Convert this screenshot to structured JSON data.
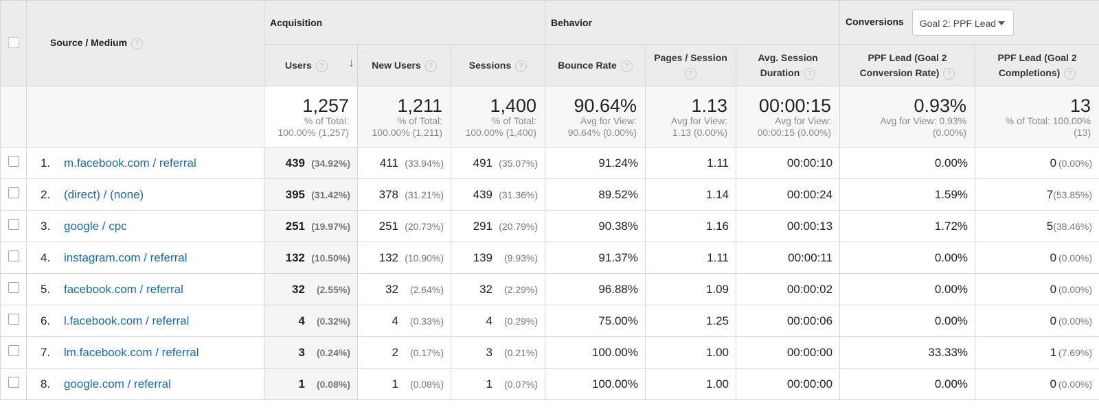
{
  "headers": {
    "source_medium": "Source / Medium",
    "groups": {
      "acquisition": "Acquisition",
      "behavior": "Behavior",
      "conversions": "Conversions"
    },
    "goal_select": "Goal 2: PPF Lead",
    "columns": {
      "users": "Users",
      "new_users": "New Users",
      "sessions": "Sessions",
      "bounce_rate": "Bounce Rate",
      "pages_session": "Pages / Session",
      "avg_session_duration": "Avg. Session Duration",
      "conv_rate": "PPF Lead (Goal 2 Conversion Rate)",
      "completions": "PPF Lead (Goal 2 Completions)"
    }
  },
  "totals": {
    "users": {
      "value": "1,257",
      "l1": "% of Total:",
      "l2": "100.00% (1,257)"
    },
    "new_users": {
      "value": "1,211",
      "l1": "% of Total:",
      "l2": "100.00% (1,211)"
    },
    "sessions": {
      "value": "1,400",
      "l1": "% of Total:",
      "l2": "100.00% (1,400)"
    },
    "bounce_rate": {
      "value": "90.64%",
      "l1": "Avg for View:",
      "l2": "90.64% (0.00%)"
    },
    "pages_session": {
      "value": "1.13",
      "l1": "Avg for View:",
      "l2": "1.13 (0.00%)"
    },
    "avg_session_duration": {
      "value": "00:00:15",
      "l1": "Avg for View:",
      "l2": "00:00:15 (0.00%)"
    },
    "conv_rate": {
      "value": "0.93%",
      "l1": "Avg for View: 0.93%",
      "l2": "(0.00%)"
    },
    "completions": {
      "value": "13",
      "l1": "% of Total: 100.00%",
      "l2": "(13)"
    }
  },
  "rows": [
    {
      "index": "1.",
      "source": "m.facebook.com / referral",
      "users": "439",
      "users_pct": "(34.92%)",
      "new_users": "411",
      "new_users_pct": "(33.94%)",
      "sessions": "491",
      "sessions_pct": "(35.07%)",
      "bounce_rate": "91.24%",
      "pages_session": "1.11",
      "avg_session_duration": "00:00:10",
      "conv_rate": "0.00%",
      "completions": "0",
      "completions_pct": "(0.00%)"
    },
    {
      "index": "2.",
      "source": "(direct) / (none)",
      "users": "395",
      "users_pct": "(31.42%)",
      "new_users": "378",
      "new_users_pct": "(31.21%)",
      "sessions": "439",
      "sessions_pct": "(31.36%)",
      "bounce_rate": "89.52%",
      "pages_session": "1.14",
      "avg_session_duration": "00:00:24",
      "conv_rate": "1.59%",
      "completions": "7",
      "completions_pct": "(53.85%)"
    },
    {
      "index": "3.",
      "source": "google / cpc",
      "users": "251",
      "users_pct": "(19.97%)",
      "new_users": "251",
      "new_users_pct": "(20.73%)",
      "sessions": "291",
      "sessions_pct": "(20.79%)",
      "bounce_rate": "90.38%",
      "pages_session": "1.16",
      "avg_session_duration": "00:00:13",
      "conv_rate": "1.72%",
      "completions": "5",
      "completions_pct": "(38.46%)"
    },
    {
      "index": "4.",
      "source": "instagram.com / referral",
      "users": "132",
      "users_pct": "(10.50%)",
      "new_users": "132",
      "new_users_pct": "(10.90%)",
      "sessions": "139",
      "sessions_pct": "(9.93%)",
      "bounce_rate": "91.37%",
      "pages_session": "1.11",
      "avg_session_duration": "00:00:11",
      "conv_rate": "0.00%",
      "completions": "0",
      "completions_pct": "(0.00%)"
    },
    {
      "index": "5.",
      "source": "facebook.com / referral",
      "users": "32",
      "users_pct": "(2.55%)",
      "new_users": "32",
      "new_users_pct": "(2.64%)",
      "sessions": "32",
      "sessions_pct": "(2.29%)",
      "bounce_rate": "96.88%",
      "pages_session": "1.09",
      "avg_session_duration": "00:00:02",
      "conv_rate": "0.00%",
      "completions": "0",
      "completions_pct": "(0.00%)"
    },
    {
      "index": "6.",
      "source": "l.facebook.com / referral",
      "users": "4",
      "users_pct": "(0.32%)",
      "new_users": "4",
      "new_users_pct": "(0.33%)",
      "sessions": "4",
      "sessions_pct": "(0.29%)",
      "bounce_rate": "75.00%",
      "pages_session": "1.25",
      "avg_session_duration": "00:00:06",
      "conv_rate": "0.00%",
      "completions": "0",
      "completions_pct": "(0.00%)"
    },
    {
      "index": "7.",
      "source": "lm.facebook.com / referral",
      "users": "3",
      "users_pct": "(0.24%)",
      "new_users": "2",
      "new_users_pct": "(0.17%)",
      "sessions": "3",
      "sessions_pct": "(0.21%)",
      "bounce_rate": "100.00%",
      "pages_session": "1.00",
      "avg_session_duration": "00:00:00",
      "conv_rate": "33.33%",
      "completions": "1",
      "completions_pct": "(7.69%)"
    },
    {
      "index": "8.",
      "source": "google.com / referral",
      "users": "1",
      "users_pct": "(0.08%)",
      "new_users": "1",
      "new_users_pct": "(0.08%)",
      "sessions": "1",
      "sessions_pct": "(0.07%)",
      "bounce_rate": "100.00%",
      "pages_session": "1.00",
      "avg_session_duration": "00:00:00",
      "conv_rate": "0.00%",
      "completions": "0",
      "completions_pct": "(0.00%)"
    }
  ]
}
